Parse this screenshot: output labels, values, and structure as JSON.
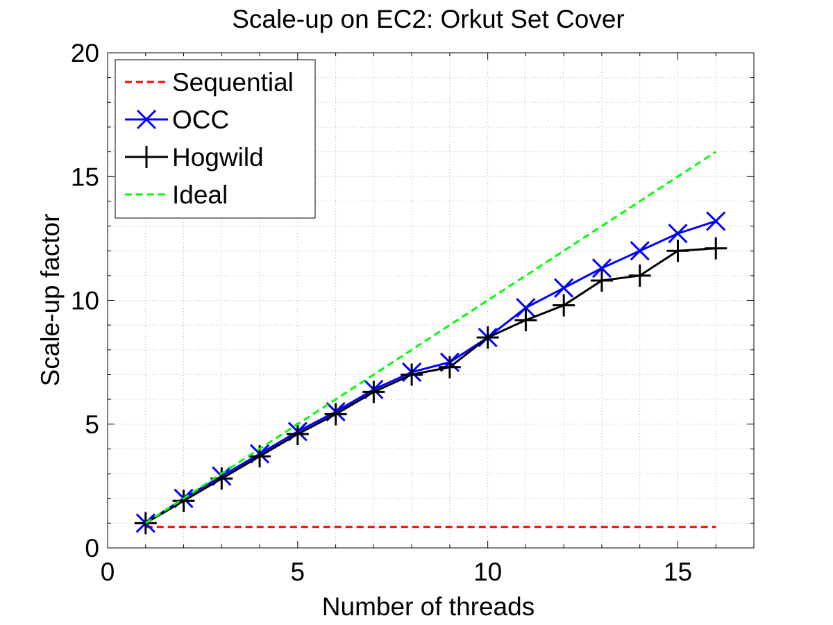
{
  "chart_data": {
    "type": "line",
    "title": "Scale-up on EC2: Orkut Set Cover",
    "xlabel": "Number of threads",
    "ylabel": "Scale-up factor",
    "xlim": [
      0,
      17
    ],
    "ylim": [
      0,
      20
    ],
    "xticks": [
      0,
      5,
      10,
      15
    ],
    "xtick_labels": [
      "0",
      "5",
      "10",
      "15"
    ],
    "yticks": [
      0,
      5,
      10,
      15,
      20
    ],
    "ytick_labels": [
      "0",
      "5",
      "10",
      "15",
      "20"
    ],
    "grid": true,
    "minor_grid": true,
    "legend_position": "top-left",
    "x": [
      1,
      2,
      3,
      4,
      5,
      6,
      7,
      8,
      9,
      10,
      11,
      12,
      13,
      14,
      15,
      16
    ],
    "series": [
      {
        "name": "Sequential",
        "color": "#ff0000",
        "line_style": "dashed",
        "marker": "none",
        "values": [
          0.85,
          0.85,
          0.85,
          0.85,
          0.85,
          0.85,
          0.85,
          0.85,
          0.85,
          0.85,
          0.85,
          0.85,
          0.85,
          0.85,
          0.85,
          0.85
        ]
      },
      {
        "name": "OCC",
        "color": "#0000ff",
        "line_style": "solid",
        "marker": "x",
        "values": [
          1.0,
          2.0,
          2.9,
          3.8,
          4.7,
          5.5,
          6.4,
          7.1,
          7.5,
          8.5,
          9.7,
          10.5,
          11.3,
          12.0,
          12.7,
          13.2
        ]
      },
      {
        "name": "Hogwild",
        "color": "#000000",
        "line_style": "solid",
        "marker": "+",
        "values": [
          1.0,
          1.9,
          2.8,
          3.7,
          4.6,
          5.4,
          6.3,
          7.0,
          7.3,
          8.5,
          9.2,
          9.8,
          10.8,
          11.0,
          12.0,
          12.1
        ]
      },
      {
        "name": "Ideal",
        "color": "#00ff00",
        "line_style": "dashed",
        "marker": "none",
        "values": [
          1,
          2,
          3,
          4,
          5,
          6,
          7,
          8,
          9,
          10,
          11,
          12,
          13,
          14,
          15,
          16
        ]
      }
    ]
  }
}
